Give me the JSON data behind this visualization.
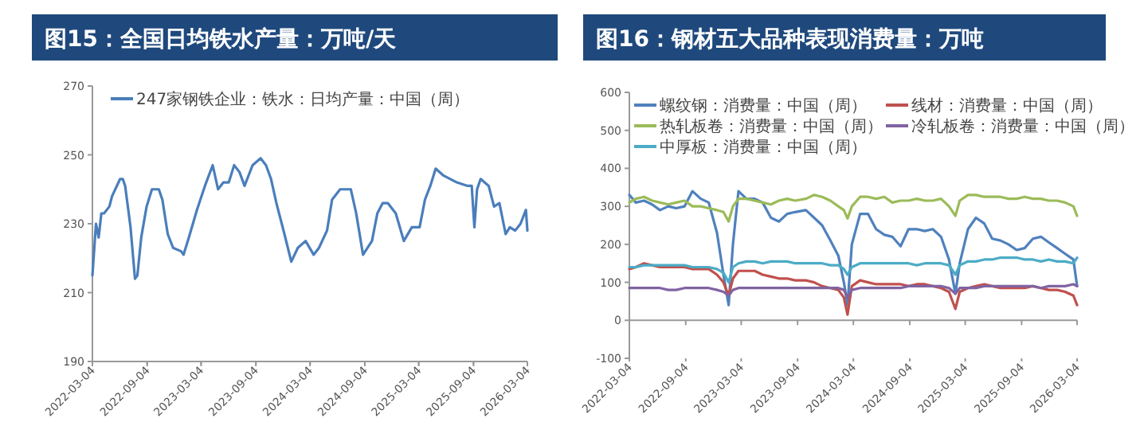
{
  "chart_data": [
    {
      "type": "line",
      "title": "图15：全国日均铁水产量：万吨/天",
      "legend": "top",
      "x": [
        "2022-03-04",
        "2022-03-16",
        "2022-03-25",
        "2022-04-03",
        "2022-04-12",
        "2022-04-30",
        "2022-05-09",
        "2022-06-05",
        "2022-06-14",
        "2022-06-22",
        "2022-07-10",
        "2022-07-25",
        "2022-08-02",
        "2022-08-15",
        "2022-09-02",
        "2022-09-20",
        "2022-10-13",
        "2022-10-25",
        "2022-11-12",
        "2022-11-30",
        "2022-12-27",
        "2023-01-04",
        "2023-01-22",
        "2023-02-18",
        "2023-03-17",
        "2023-04-12",
        "2023-04-30",
        "2023-05-18",
        "2023-06-05",
        "2023-06-23",
        "2023-07-11",
        "2023-07-28",
        "2023-08-24",
        "2023-09-20",
        "2023-10-08",
        "2023-10-25",
        "2023-11-12",
        "2023-12-09",
        "2024-01-01",
        "2024-01-23",
        "2024-02-18",
        "2024-03-16",
        "2024-04-03",
        "2024-04-30",
        "2024-05-17",
        "2024-06-13",
        "2024-07-19",
        "2024-08-06",
        "2024-08-29",
        "2024-09-28",
        "2024-10-16",
        "2024-11-03",
        "2024-11-20",
        "2024-12-17",
        "2025-01-13",
        "2025-02-09",
        "2025-03-07",
        "2025-03-25",
        "2025-04-12",
        "2025-04-30",
        "2025-05-26",
        "2025-07-10",
        "2025-08-15",
        "2025-08-29",
        "2025-09-07",
        "2025-09-16",
        "2025-09-28",
        "2025-10-25",
        "2025-11-12",
        "2025-11-30",
        "2025-12-21",
        "2026-01-04",
        "2026-01-22",
        "2026-02-09",
        "2026-02-27",
        "2026-03-04"
      ],
      "series": [
        {
          "name": "247家钢铁企业：铁水：日均产量：中国（周）",
          "color": "#4a7ebb",
          "values": [
            215,
            230,
            226,
            233,
            233,
            235,
            238,
            243,
            243,
            241,
            229,
            214,
            215,
            226,
            235,
            240,
            240,
            237,
            227,
            223,
            222,
            221,
            226,
            234,
            241,
            247,
            240,
            242,
            242,
            247,
            245,
            241,
            247,
            249,
            247,
            243,
            236,
            227,
            219,
            223,
            225,
            221,
            223,
            228,
            237,
            240,
            240,
            233,
            221,
            225,
            233,
            236,
            236,
            233,
            225,
            229,
            229,
            237,
            241,
            246,
            244,
            242,
            241,
            241,
            229,
            240,
            243,
            241,
            235,
            236,
            227,
            229,
            228,
            230,
            234,
            228
          ]
        }
      ],
      "xlim": [
        "2022-03-04",
        "2026-03-04"
      ],
      "ylim": [
        190,
        270
      ],
      "yticks": [
        190,
        210,
        230,
        250,
        270
      ],
      "xticks": [
        "2022-03-04",
        "2022-09-04",
        "2023-03-04",
        "2023-09-04",
        "2024-03-04",
        "2024-09-04",
        "2025-03-04",
        "2025-09-04",
        "2026-03-04"
      ]
    },
    {
      "type": "line",
      "title": "图16：钢材五大品种表现消费量：万吨",
      "legend": "top",
      "x": [
        "2022-03-04",
        "2022-03-25",
        "2022-04-21",
        "2022-05-17",
        "2022-06-12",
        "2022-07-09",
        "2022-08-04",
        "2022-08-31",
        "2022-09-26",
        "2022-10-23",
        "2022-11-18",
        "2022-12-15",
        "2023-01-05",
        "2023-01-22",
        "2023-02-05",
        "2023-02-23",
        "2023-03-21",
        "2023-04-17",
        "2023-05-13",
        "2023-06-09",
        "2023-07-05",
        "2023-08-01",
        "2023-08-27",
        "2023-10-01",
        "2023-10-28",
        "2023-11-23",
        "2023-12-20",
        "2024-01-15",
        "2024-02-02",
        "2024-02-14",
        "2024-02-28",
        "2024-03-26",
        "2024-04-21",
        "2024-05-17",
        "2024-06-13",
        "2024-07-09",
        "2024-08-05",
        "2024-08-31",
        "2024-09-27",
        "2024-10-23",
        "2024-11-18",
        "2024-12-15",
        "2025-01-10",
        "2025-01-31",
        "2025-02-14",
        "2025-03-13",
        "2025-04-08",
        "2025-05-05",
        "2025-05-31",
        "2025-06-27",
        "2025-07-23",
        "2025-08-19",
        "2025-09-14",
        "2025-10-11",
        "2025-11-06",
        "2025-12-02",
        "2025-12-29",
        "2026-01-24",
        "2026-02-20",
        "2026-03-04"
      ],
      "series": [
        {
          "name": "螺纹钢：消费量：中国（周）",
          "color": "#4f81bd",
          "values": [
            330,
            310,
            315,
            305,
            290,
            300,
            295,
            300,
            340,
            320,
            310,
            230,
            120,
            40,
            200,
            340,
            320,
            320,
            310,
            270,
            260,
            280,
            285,
            290,
            270,
            250,
            210,
            170,
            100,
            40,
            200,
            280,
            280,
            240,
            225,
            220,
            195,
            240,
            240,
            235,
            240,
            220,
            160,
            70,
            150,
            240,
            270,
            255,
            215,
            210,
            200,
            185,
            190,
            215,
            220,
            205,
            190,
            175,
            160,
            90
          ]
        },
        {
          "name": "线材：消费量：中国（周）",
          "color": "#c0504d",
          "values": [
            135,
            140,
            150,
            145,
            140,
            140,
            140,
            140,
            135,
            135,
            135,
            120,
            100,
            65,
            110,
            130,
            130,
            130,
            120,
            115,
            110,
            110,
            105,
            105,
            100,
            90,
            85,
            80,
            60,
            15,
            90,
            105,
            100,
            95,
            95,
            95,
            95,
            90,
            95,
            95,
            90,
            85,
            75,
            30,
            75,
            85,
            90,
            95,
            90,
            85,
            85,
            85,
            85,
            90,
            85,
            80,
            80,
            75,
            65,
            40
          ]
        },
        {
          "name": "热轧板卷：消费量：中国（周）",
          "color": "#9bbb59",
          "values": [
            310,
            320,
            325,
            315,
            310,
            305,
            310,
            315,
            300,
            300,
            295,
            290,
            285,
            260,
            300,
            320,
            320,
            315,
            310,
            305,
            315,
            320,
            315,
            320,
            330,
            325,
            315,
            300,
            290,
            268,
            300,
            325,
            325,
            320,
            325,
            310,
            315,
            315,
            320,
            315,
            315,
            320,
            300,
            275,
            315,
            330,
            330,
            325,
            325,
            325,
            320,
            320,
            325,
            320,
            320,
            315,
            315,
            310,
            300,
            275
          ]
        },
        {
          "name": "冷轧板卷：消费量：中国（周）",
          "color": "#8064a2",
          "values": [
            85,
            85,
            85,
            85,
            85,
            80,
            80,
            85,
            85,
            85,
            85,
            80,
            75,
            65,
            80,
            85,
            85,
            85,
            85,
            85,
            85,
            85,
            85,
            85,
            85,
            85,
            85,
            85,
            80,
            60,
            80,
            85,
            85,
            85,
            85,
            85,
            85,
            90,
            90,
            90,
            90,
            90,
            85,
            70,
            85,
            85,
            85,
            90,
            90,
            90,
            90,
            90,
            90,
            90,
            85,
            90,
            90,
            90,
            95,
            90
          ]
        },
        {
          "name": "中厚板：消费量：中国（周）",
          "color": "#4bacc6",
          "values": [
            140,
            140,
            145,
            145,
            145,
            145,
            145,
            145,
            140,
            140,
            140,
            135,
            125,
            100,
            140,
            150,
            155,
            155,
            150,
            155,
            155,
            155,
            150,
            150,
            150,
            150,
            145,
            145,
            135,
            120,
            140,
            150,
            150,
            150,
            150,
            150,
            150,
            150,
            145,
            150,
            150,
            150,
            145,
            120,
            145,
            155,
            155,
            160,
            160,
            165,
            165,
            165,
            160,
            160,
            155,
            160,
            155,
            155,
            150,
            165
          ]
        }
      ],
      "xlim": [
        "2022-03-04",
        "2026-03-04"
      ],
      "ylim": [
        -100,
        600
      ],
      "yticks": [
        -100,
        0,
        100,
        200,
        300,
        400,
        500,
        600
      ],
      "xticks": [
        "2022-03-04",
        "2022-09-04",
        "2023-03-04",
        "2023-09-04",
        "2024-03-04",
        "2024-09-04",
        "2025-03-04",
        "2025-09-04",
        "2026-03-04"
      ]
    }
  ]
}
